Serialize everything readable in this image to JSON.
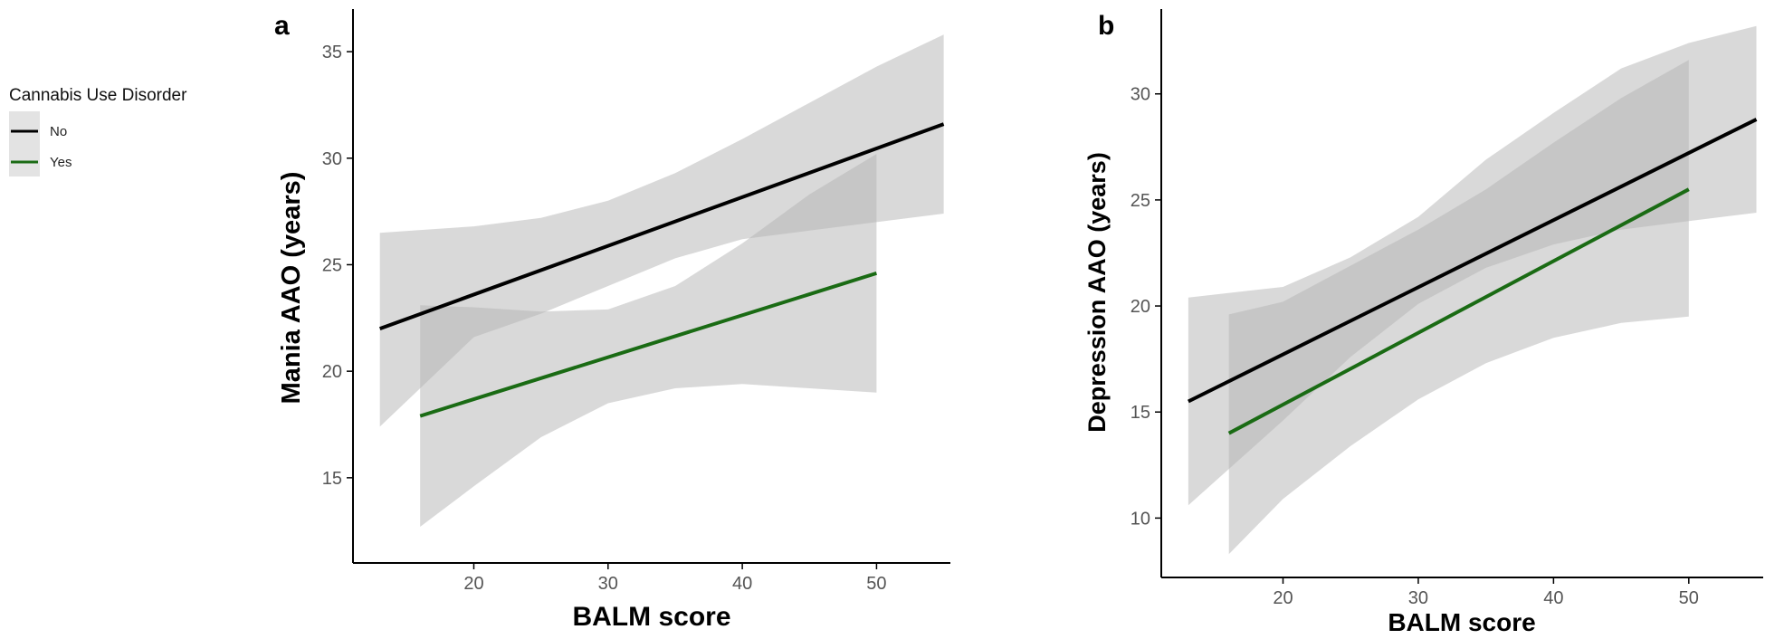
{
  "legend": {
    "title": "Cannabis Use Disorder",
    "items": [
      {
        "label": "No",
        "color": "#000000"
      },
      {
        "label": "Yes",
        "color": "#1a6b14"
      }
    ]
  },
  "colors": {
    "band": "#b4b4b4",
    "no": "#000000",
    "yes": "#1a6b14"
  },
  "chart_data": [
    {
      "panel": "a",
      "type": "line",
      "xlabel": "BALM score",
      "ylabel": "Mania AAO (years)",
      "xlim": [
        11,
        55.5
      ],
      "ylim": [
        11,
        37
      ],
      "xticks": [
        20,
        30,
        40,
        50
      ],
      "yticks": [
        15,
        20,
        25,
        30,
        35
      ],
      "grid": false,
      "series": [
        {
          "name": "No",
          "color": "#000000",
          "x": [
            13,
            55
          ],
          "y": [
            22.0,
            31.6
          ],
          "band": {
            "x": [
              13,
              20,
              25,
              30,
              35,
              40,
              45,
              50,
              55
            ],
            "lower": [
              17.4,
              21.6,
              22.7,
              24.0,
              25.3,
              26.2,
              26.6,
              27.0,
              27.4
            ],
            "upper": [
              26.5,
              26.8,
              27.2,
              28.0,
              29.3,
              30.9,
              32.6,
              34.3,
              35.8
            ]
          }
        },
        {
          "name": "Yes",
          "color": "#1a6b14",
          "x": [
            16,
            50
          ],
          "y": [
            17.9,
            24.6
          ],
          "band": {
            "x": [
              16,
              20,
              25,
              30,
              35,
              40,
              45,
              50
            ],
            "lower": [
              12.7,
              14.6,
              16.9,
              18.5,
              19.2,
              19.4,
              19.2,
              19.0
            ],
            "upper": [
              23.1,
              23.0,
              22.8,
              22.9,
              24.0,
              26.0,
              28.3,
              30.2
            ]
          }
        }
      ]
    },
    {
      "panel": "b",
      "type": "line",
      "xlabel": "BALM score",
      "ylabel": "Depression AAO (years)",
      "xlim": [
        11,
        55.5
      ],
      "ylim": [
        7.2,
        34
      ],
      "xticks": [
        20,
        30,
        40,
        50
      ],
      "yticks": [
        10,
        15,
        20,
        25,
        30
      ],
      "grid": false,
      "series": [
        {
          "name": "No",
          "color": "#000000",
          "x": [
            13,
            55
          ],
          "y": [
            15.5,
            28.8
          ],
          "band": {
            "x": [
              13,
              20,
              25,
              30,
              35,
              40,
              45,
              50,
              55
            ],
            "lower": [
              10.6,
              14.6,
              17.6,
              20.1,
              21.8,
              22.9,
              23.6,
              24.0,
              24.4
            ],
            "upper": [
              20.4,
              20.9,
              22.3,
              24.2,
              26.9,
              29.1,
              31.2,
              32.4,
              33.2
            ]
          }
        },
        {
          "name": "Yes",
          "color": "#1a6b14",
          "x": [
            16,
            50
          ],
          "y": [
            14.0,
            25.5
          ],
          "band": {
            "x": [
              16,
              20,
              25,
              30,
              35,
              40,
              45,
              50
            ],
            "lower": [
              8.3,
              10.9,
              13.4,
              15.6,
              17.3,
              18.5,
              19.2,
              19.5
            ],
            "upper": [
              19.6,
              20.2,
              21.9,
              23.6,
              25.5,
              27.7,
              29.8,
              31.6
            ]
          }
        }
      ]
    }
  ]
}
